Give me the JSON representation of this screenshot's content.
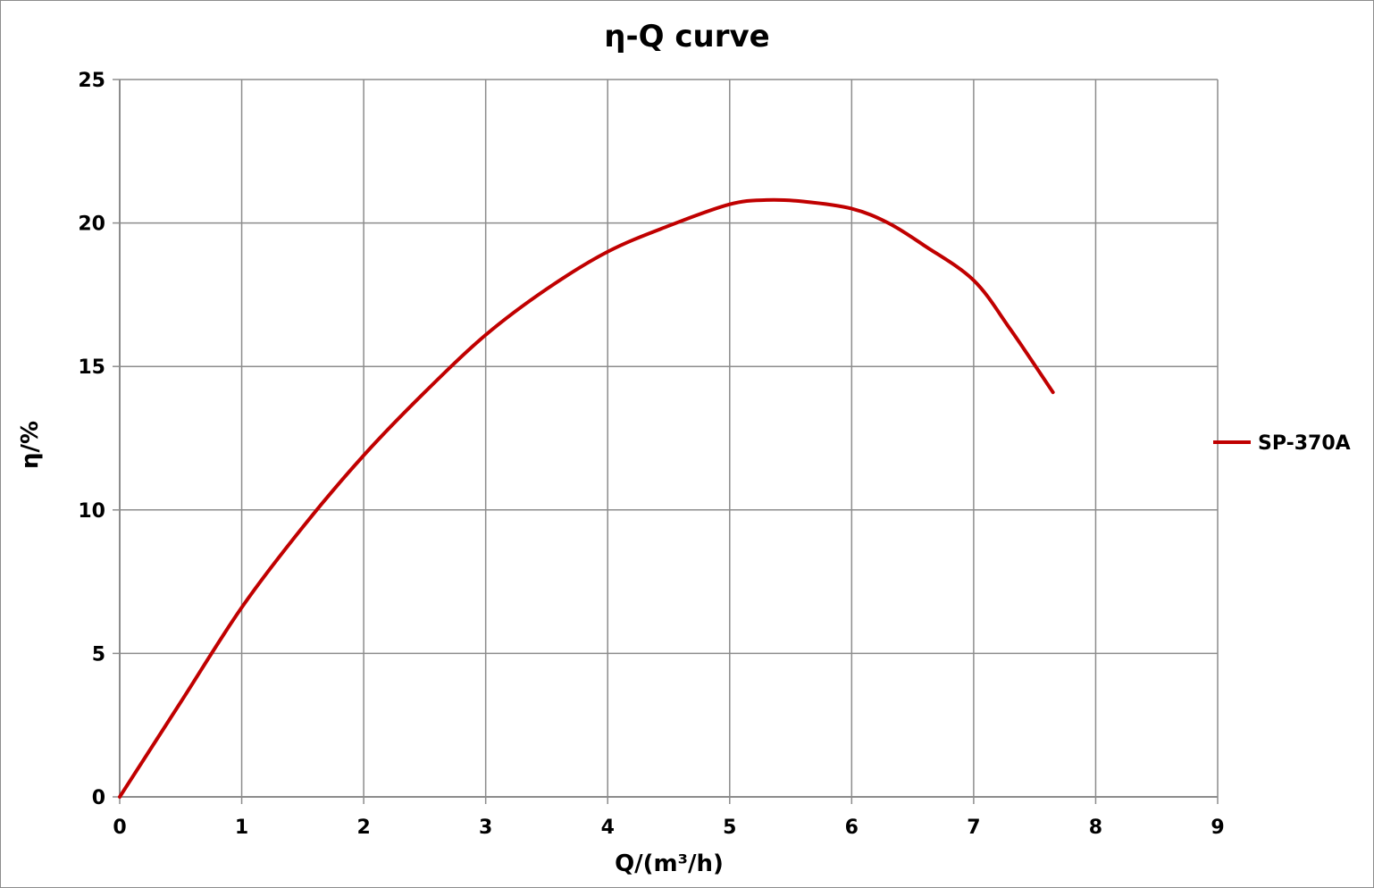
{
  "chart_data": {
    "type": "line",
    "title": "η-Q  curve",
    "xlabel": "Q/(m³/h)",
    "ylabel": "η/%",
    "xlim": [
      0,
      9
    ],
    "ylim": [
      0,
      25
    ],
    "x_ticks": [
      "0",
      "1",
      "2",
      "3",
      "4",
      "5",
      "6",
      "7",
      "8",
      "9"
    ],
    "y_ticks": [
      "0",
      "5",
      "10",
      "15",
      "20",
      "25"
    ],
    "grid": true,
    "legend": "right",
    "series": [
      {
        "name": "SP-370A",
        "color": "#c00000",
        "x": [
          0,
          0.5,
          1.0,
          1.5,
          2.0,
          2.5,
          3.0,
          3.5,
          4.0,
          4.5,
          5.0,
          5.3,
          5.6,
          6.0,
          6.3,
          6.6,
          7.0,
          7.3,
          7.65
        ],
        "y": [
          0,
          3.3,
          6.6,
          9.4,
          11.9,
          14.1,
          16.1,
          17.7,
          19.0,
          19.9,
          20.65,
          20.8,
          20.75,
          20.5,
          20.0,
          19.2,
          18.0,
          16.3,
          14.1
        ]
      }
    ]
  }
}
